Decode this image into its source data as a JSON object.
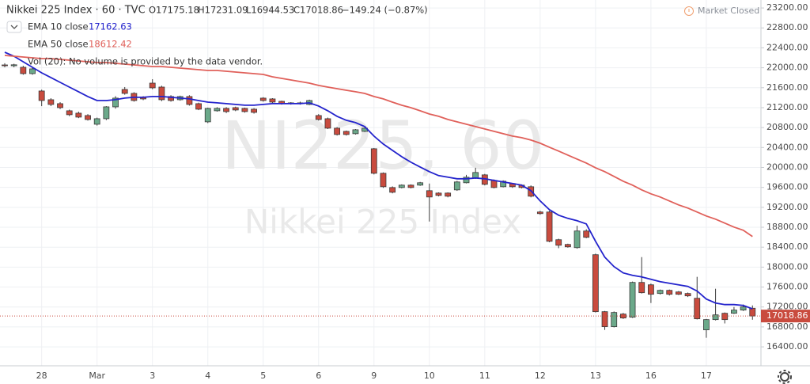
{
  "chart_data": {
    "type": "candlestick",
    "title": "Nikkei 225 Index · 60 · TVC",
    "header_values": [
      "O17175.18",
      "H17231.09",
      "L16944.53",
      "C17018.86",
      "−149.24 (−0.87%)"
    ],
    "status": "Market Closed",
    "volume_note": "Vol (20): No volume is provided by the data vendor.",
    "watermark": [
      "NI225, 60",
      "Nikkei 225 Index"
    ],
    "categories": [
      null,
      null,
      null,
      null,
      "28",
      null,
      null,
      null,
      null,
      null,
      "Mar",
      null,
      null,
      null,
      null,
      null,
      "3",
      null,
      null,
      null,
      null,
      null,
      "4",
      null,
      null,
      null,
      null,
      null,
      "5",
      null,
      null,
      null,
      null,
      null,
      "6",
      null,
      null,
      null,
      null,
      null,
      "9",
      null,
      null,
      null,
      null,
      null,
      "10",
      null,
      null,
      null,
      null,
      null,
      "11",
      null,
      null,
      null,
      null,
      null,
      "12",
      null,
      null,
      null,
      null,
      null,
      "13",
      null,
      null,
      null,
      null,
      null,
      "16",
      null,
      null,
      null,
      null,
      null,
      "17",
      null,
      null,
      null,
      null,
      null
    ],
    "open": [
      22057,
      22040,
      22010,
      21883,
      21534,
      21359,
      21280,
      21137,
      21089,
      21042,
      20867,
      20978,
      21216,
      21565,
      21486,
      21407,
      21692,
      21613,
      21423,
      21359,
      21423,
      21280,
      20915,
      21137,
      21185,
      21200,
      21185,
      21169,
      21391,
      21375,
      21327,
      21296,
      21280,
      21264,
      21042,
      20978,
      20788,
      20724,
      20677,
      20724,
      20375,
      19883,
      19597,
      19597,
      19645,
      19645,
      19534,
      19486,
      19486,
      19550,
      19693,
      19788,
      19851,
      19740,
      19613,
      19677,
      19645,
      19613,
      19106,
      19106,
      18550,
      18455,
      18391,
      18725,
      18249,
      17106,
      16805,
      17058,
      16995,
      17693,
      17645,
      17471,
      17534,
      17502,
      17471,
      17375,
      16741,
      16947,
      17074,
      17074,
      17138,
      17175.18
    ],
    "high": [
      22090,
      22080,
      22040,
      22000,
      21560,
      21390,
      21310,
      21160,
      21120,
      21070,
      21000,
      21230,
      21430,
      21613,
      21510,
      21430,
      21771,
      21640,
      21450,
      21440,
      21450,
      21300,
      21200,
      21210,
      21210,
      21220,
      21200,
      21190,
      21410,
      21390,
      21340,
      21310,
      21320,
      21360,
      21070,
      21000,
      20810,
      20740,
      20770,
      20800,
      20390,
      19900,
      19620,
      19660,
      19660,
      19710,
      19677,
      19500,
      19500,
      19730,
      19850,
      19994,
      19870,
      19760,
      19740,
      19690,
      19660,
      19640,
      19130,
      19130,
      18570,
      18470,
      18830,
      18760,
      18270,
      17120,
      17110,
      17080,
      17710,
      18201,
      17670,
      17550,
      17550,
      17520,
      17490,
      17805,
      16960,
      17566,
      17090,
      17200,
      17250,
      17231.09
    ],
    "low": [
      22010,
      22010,
      21860,
      21860,
      21230,
      21230,
      21170,
      21030,
      20990,
      20940,
      20840,
      20950,
      21180,
      21460,
      21320,
      21350,
      21570,
      21330,
      21320,
      21340,
      21240,
      21150,
      20890,
      21120,
      21090,
      21130,
      21100,
      21080,
      21320,
      21290,
      21260,
      21260,
      21260,
      21250,
      20940,
      20770,
      20640,
      20640,
      20660,
      20710,
      19860,
      19590,
      19480,
      19580,
      19580,
      19630,
      18915,
      19420,
      19400,
      19530,
      19680,
      19770,
      19640,
      19580,
      19600,
      19590,
      19580,
      19400,
      19050,
      18500,
      18380,
      18390,
      18370,
      18580,
      17090,
      16740,
      16790,
      16960,
      16980,
      17470,
      17280,
      17450,
      17430,
      17440,
      17400,
      16950,
      16582,
      16930,
      16870,
      17060,
      17120,
      16944.53
    ],
    "close": [
      22040,
      22060,
      21883,
      21978,
      21343,
      21264,
      21200,
      21058,
      21010,
      20962,
      20978,
      21216,
      21391,
      21486,
      21343,
      21375,
      21597,
      21359,
      21343,
      21423,
      21264,
      21169,
      21185,
      21185,
      21121,
      21153,
      21121,
      21105,
      21343,
      21311,
      21280,
      21280,
      21296,
      21343,
      20962,
      20788,
      20661,
      20661,
      20756,
      20788,
      19883,
      19613,
      19502,
      19645,
      19597,
      19693,
      19407,
      19439,
      19423,
      19709,
      19804,
      19899,
      19661,
      19597,
      19724,
      19613,
      19597,
      19423,
      19074,
      18518,
      18439,
      18407,
      18725,
      18598,
      17106,
      16805,
      17090,
      16979,
      17693,
      17487,
      17455,
      17534,
      17455,
      17455,
      17423,
      16963,
      16947,
      17042,
      16947,
      17138,
      17201,
      17018.86
    ],
    "up_color": "#6ba98a",
    "down_color": "#c94b3e",
    "series": [
      {
        "name": "EMA 10 close",
        "color": "#2323cc",
        "values": [
          22311,
          22232,
          22121,
          22010,
          21899,
          21804,
          21708,
          21613,
          21518,
          21423,
          21343,
          21343,
          21359,
          21391,
          21407,
          21407,
          21423,
          21423,
          21407,
          21391,
          21375,
          21343,
          21311,
          21296,
          21280,
          21264,
          21248,
          21248,
          21264,
          21280,
          21280,
          21280,
          21280,
          21296,
          21232,
          21137,
          21026,
          20947,
          20899,
          20820,
          20629,
          20470,
          20343,
          20216,
          20105,
          20010,
          19915,
          19836,
          19804,
          19772,
          19772,
          19788,
          19772,
          19740,
          19709,
          19677,
          19645,
          19534,
          19328,
          19153,
          19042,
          18979,
          18931,
          18867,
          18518,
          18201,
          18011,
          17884,
          17836,
          17804,
          17757,
          17709,
          17677,
          17645,
          17614,
          17519,
          17360,
          17280,
          17248,
          17248,
          17233,
          17162.63
        ]
      },
      {
        "name": "EMA 50 close",
        "color": "#e0605a",
        "values": [
          22248,
          22232,
          22216,
          22200,
          22184,
          22184,
          22168,
          22153,
          22137,
          22121,
          22105,
          22105,
          22089,
          22073,
          22057,
          22042,
          22026,
          22026,
          22010,
          21994,
          21978,
          21962,
          21946,
          21946,
          21930,
          21915,
          21899,
          21883,
          21867,
          21819,
          21787,
          21756,
          21724,
          21692,
          21645,
          21613,
          21581,
          21549,
          21518,
          21486,
          21423,
          21375,
          21311,
          21248,
          21200,
          21137,
          21073,
          21026,
          20962,
          20915,
          20867,
          20820,
          20772,
          20724,
          20677,
          20629,
          20597,
          20550,
          20486,
          20407,
          20328,
          20248,
          20169,
          20089,
          19994,
          19915,
          19820,
          19724,
          19645,
          19550,
          19470,
          19407,
          19328,
          19248,
          19185,
          19105,
          19026,
          18962,
          18883,
          18804,
          18740,
          18612.42
        ]
      }
    ],
    "ylim": [
      16020,
      23360
    ],
    "yticks": [
      {
        "value": 16400,
        "label": "16400.00"
      },
      {
        "value": 16800,
        "label": "16800.00"
      },
      {
        "value": 17200,
        "label": "17200.00"
      },
      {
        "value": 17600,
        "label": "17600.00"
      },
      {
        "value": 18000,
        "label": "18000.00"
      },
      {
        "value": 18400,
        "label": "18400.00"
      },
      {
        "value": 18800,
        "label": "18800.00"
      },
      {
        "value": 19200,
        "label": "19200.00"
      },
      {
        "value": 19600,
        "label": "19600.00"
      },
      {
        "value": 20000,
        "label": "20000.00"
      },
      {
        "value": 20400,
        "label": "20400.00"
      },
      {
        "value": 20800,
        "label": "20800.00"
      },
      {
        "value": 21200,
        "label": "21200.00"
      },
      {
        "value": 21600,
        "label": "21600.00"
      },
      {
        "value": 22000,
        "label": "22000.00"
      },
      {
        "value": 22400,
        "label": "22400.00"
      },
      {
        "value": 22800,
        "label": "22800.00"
      },
      {
        "value": 23200,
        "label": "23200.00"
      }
    ],
    "grid": true
  }
}
